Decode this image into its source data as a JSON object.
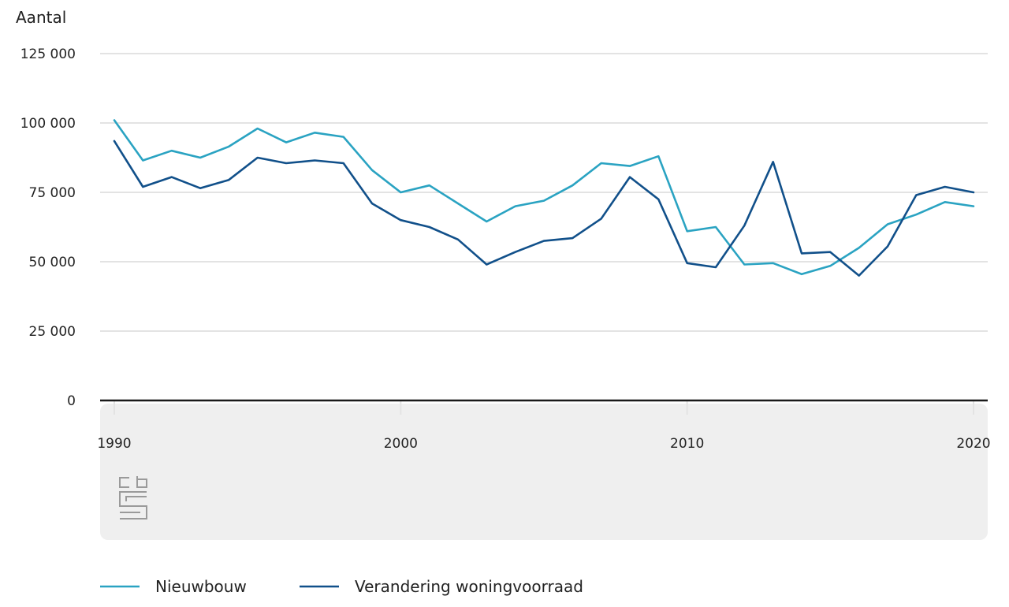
{
  "colors": {
    "nieuwbouw": "#2aa3c2",
    "verandering": "#11508a",
    "grid": "#e3e3e3",
    "axis": "#1a1a1a",
    "footer_bg": "#efefef",
    "logo": "#9a9a9a"
  },
  "logo": {
    "icon": "cbs-logo-icon",
    "text": "cbs"
  },
  "chart_data": {
    "type": "line",
    "ylabel": "Aantal",
    "xlabel": "",
    "ylim": [
      0,
      125000
    ],
    "xlim": [
      1990,
      2020
    ],
    "y_ticks": [
      0,
      25000,
      50000,
      75000,
      100000,
      125000
    ],
    "y_tick_labels": [
      "0",
      "25 000",
      "50 000",
      "75 000",
      "100 000",
      "125 000"
    ],
    "x_ticks": [
      1990,
      2000,
      2010,
      2020
    ],
    "x_tick_labels": [
      "1990",
      "2000",
      "2010",
      "2020"
    ],
    "grid": true,
    "legend_position": "bottom-left",
    "x": [
      1990,
      1991,
      1992,
      1993,
      1994,
      1995,
      1996,
      1997,
      1998,
      1999,
      2000,
      2001,
      2002,
      2003,
      2004,
      2005,
      2006,
      2007,
      2008,
      2009,
      2010,
      2011,
      2012,
      2013,
      2014,
      2015,
      2016,
      2017,
      2018,
      2019,
      2020
    ],
    "series": [
      {
        "name": "Nieuwbouw",
        "color_key": "nieuwbouw",
        "values": [
          101000,
          86500,
          90000,
          87500,
          91500,
          98000,
          93000,
          96500,
          95000,
          83000,
          75000,
          77500,
          71000,
          64500,
          70000,
          72000,
          77500,
          85500,
          84500,
          88000,
          61000,
          62500,
          49000,
          49500,
          45500,
          48500,
          55000,
          63500,
          67000,
          71500,
          70000
        ]
      },
      {
        "name": "Verandering woningvoorraad",
        "color_key": "verandering",
        "values": [
          93500,
          77000,
          80500,
          76500,
          79500,
          87500,
          85500,
          86500,
          85500,
          71000,
          65000,
          62500,
          58000,
          49000,
          53500,
          57500,
          58500,
          65500,
          80500,
          72500,
          49500,
          48000,
          63000,
          86000,
          53000,
          53500,
          45000,
          55500,
          74000,
          77000,
          75000
        ]
      }
    ]
  }
}
